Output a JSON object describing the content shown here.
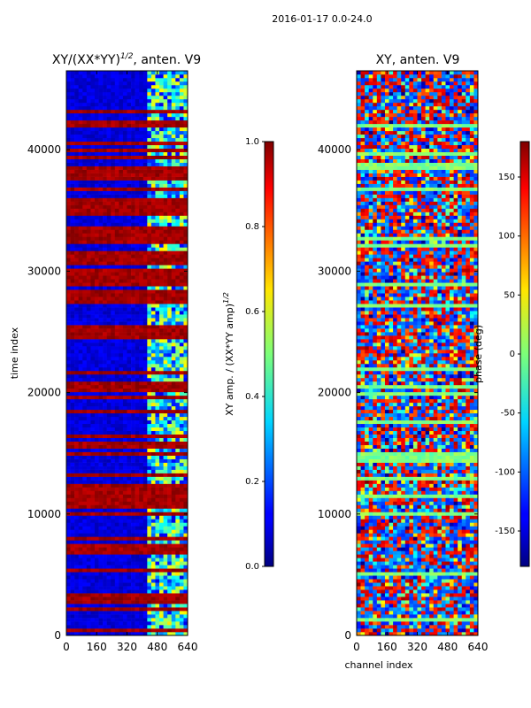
{
  "figure": {
    "suptitle": "2016-01-17 0.0-24.0"
  },
  "chart_data": [
    {
      "type": "heatmap",
      "title_main": "XY/(XX*YY)",
      "title_exp": "1/2",
      "title_tail": ", anten. V9",
      "xlabel": "",
      "ylabel": "time index",
      "xlim": [
        0,
        640
      ],
      "ylim": [
        0,
        46500
      ],
      "x_ticks": [
        0,
        160,
        320,
        480,
        640
      ],
      "y_ticks": [
        0,
        10000,
        20000,
        30000,
        40000
      ],
      "colorbar": {
        "range": [
          0.0,
          1.0
        ],
        "ticks": [
          "0.0",
          "0.2",
          "0.4",
          "0.6",
          "0.8",
          "1.0"
        ],
        "label_main": "XY amp. / (XX*YY amp)",
        "label_exp": "1/2",
        "colormap": "jet"
      },
      "band_pattern": {
        "high_rows_time": [
          28000,
          29500,
          31000,
          33000,
          35500,
          38000,
          12000,
          11000
        ],
        "bright_channel_range": [
          420,
          640
        ]
      }
    },
    {
      "type": "heatmap",
      "title": "XY, anten. V9",
      "xlabel": "channel index",
      "ylabel": "",
      "xlim": [
        0,
        640
      ],
      "ylim": [
        0,
        46500
      ],
      "x_ticks": [
        0,
        160,
        320,
        480,
        640
      ],
      "y_ticks": [
        0,
        10000,
        20000,
        30000,
        40000
      ],
      "colorbar": {
        "range": [
          -180,
          180
        ],
        "ticks": [
          "-150",
          "-100",
          "-50",
          "0",
          "50",
          "100",
          "150"
        ],
        "label": "phase (deg)",
        "colormap": "jet"
      }
    }
  ],
  "colors": {
    "low": "#00007f",
    "high": "#7f0000"
  }
}
